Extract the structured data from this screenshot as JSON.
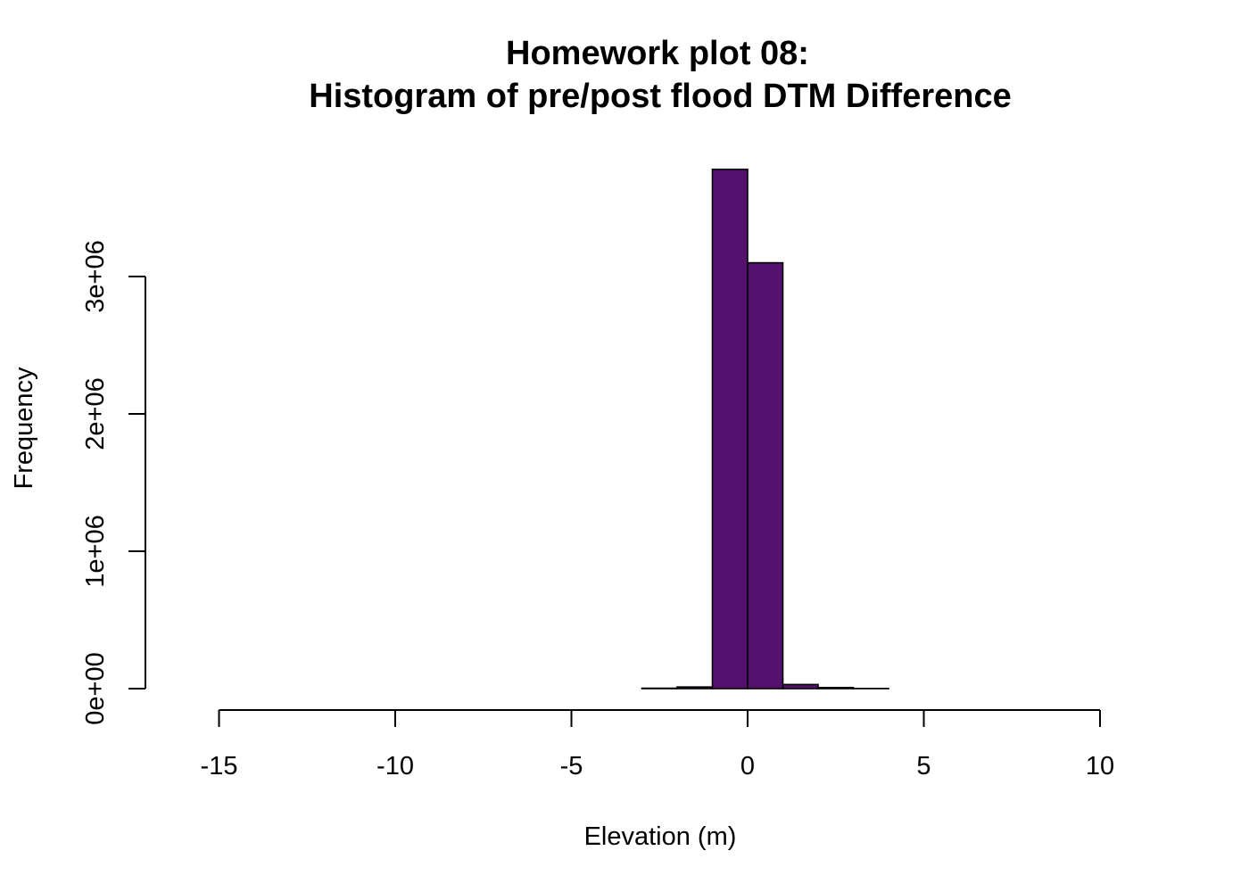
{
  "chart_data": {
    "type": "bar",
    "title": "Homework plot 08:",
    "subtitle": "Histogram of pre/post flood DTM Difference",
    "xlabel": "Elevation (m)",
    "ylabel": "Frequency",
    "x_ticks": [
      -15,
      -10,
      -5,
      0,
      5,
      10
    ],
    "x_tick_labels": [
      "-15",
      "-10",
      "-5",
      "0",
      "5",
      "10"
    ],
    "y_ticks": [
      0,
      1000000,
      2000000,
      3000000
    ],
    "y_tick_labels": [
      "0e+00",
      "1e+06",
      "2e+06",
      "3e+06"
    ],
    "xlim": [
      -16,
      11
    ],
    "ylim": [
      0,
      3800000
    ],
    "bin_width": 1,
    "bin_edges": [
      -16,
      -15,
      -14,
      -13,
      -12,
      -11,
      -10,
      -9,
      -8,
      -7,
      -6,
      -5,
      -4,
      -3,
      -2,
      -1,
      0,
      1,
      2,
      3,
      4,
      5,
      6,
      7,
      8,
      9,
      10,
      11
    ],
    "values": [
      0,
      0,
      0,
      0,
      0,
      0,
      0,
      0,
      0,
      0,
      0,
      0,
      0,
      3000,
      12000,
      3780000,
      3100000,
      30000,
      8000,
      1000,
      0,
      0,
      0,
      0,
      0,
      0,
      0
    ],
    "bar_color": "#56106e",
    "grid": false,
    "legend": "none"
  }
}
